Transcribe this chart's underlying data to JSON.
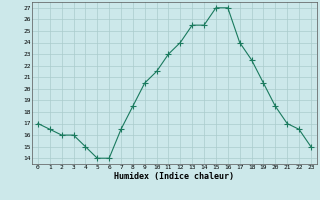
{
  "x": [
    0,
    1,
    2,
    3,
    4,
    5,
    6,
    7,
    8,
    9,
    10,
    11,
    12,
    13,
    14,
    15,
    16,
    17,
    18,
    19,
    20,
    21,
    22,
    23
  ],
  "y": [
    17,
    16.5,
    16,
    16,
    15,
    14,
    14,
    16.5,
    18.5,
    20.5,
    21.5,
    23,
    24,
    25.5,
    25.5,
    27,
    27,
    24,
    22.5,
    20.5,
    18.5,
    17,
    16.5,
    15
  ],
  "line_color": "#1a7a5e",
  "marker": "+",
  "marker_size": 4,
  "marker_color": "#1a7a5e",
  "bg_color": "#cce8ea",
  "grid_color": "#aacccc",
  "xlabel": "Humidex (Indice chaleur)",
  "ylabel_ticks": [
    14,
    15,
    16,
    17,
    18,
    19,
    20,
    21,
    22,
    23,
    24,
    25,
    26,
    27
  ],
  "ylim": [
    13.5,
    27.5
  ],
  "xlim": [
    -0.5,
    23.5
  ],
  "xtick_labels": [
    "0",
    "1",
    "2",
    "3",
    "4",
    "5",
    "6",
    "7",
    "8",
    "9",
    "10",
    "11",
    "12",
    "13",
    "14",
    "15",
    "16",
    "17",
    "18",
    "19",
    "20",
    "21",
    "22",
    "23"
  ]
}
